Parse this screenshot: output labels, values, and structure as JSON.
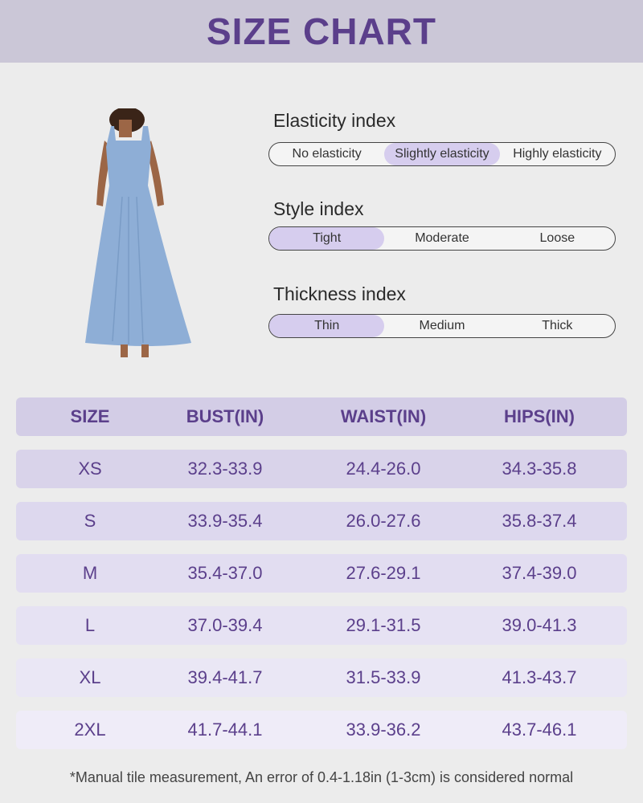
{
  "header": {
    "title": "SIZE CHART"
  },
  "indices": [
    {
      "label": "Elasticity index",
      "options": [
        "No elasticity",
        "Slightly elasticity",
        "Highly elasticity"
      ],
      "selected": 1
    },
    {
      "label": "Style index",
      "options": [
        "Tight",
        "Moderate",
        "Loose"
      ],
      "selected": 0
    },
    {
      "label": "Thickness index",
      "options": [
        "Thin",
        "Medium",
        "Thick"
      ],
      "selected": 0
    }
  ],
  "table": {
    "columns": [
      "SIZE",
      "BUST(IN)",
      "WAIST(IN)",
      "HIPS(IN)"
    ],
    "rows": [
      [
        "XS",
        "32.3-33.9",
        "24.4-26.0",
        "34.3-35.8"
      ],
      [
        "S",
        "33.9-35.4",
        "26.0-27.6",
        "35.8-37.4"
      ],
      [
        "M",
        "35.4-37.0",
        "27.6-29.1",
        "37.4-39.0"
      ],
      [
        "L",
        "37.0-39.4",
        "29.1-31.5",
        "39.0-41.3"
      ],
      [
        "XL",
        "39.4-41.7",
        "31.5-33.9",
        "41.3-43.7"
      ],
      [
        "2XL",
        "41.7-44.1",
        "33.9-36.2",
        "43.7-46.1"
      ]
    ]
  },
  "footnote": "*Manual tile measurement, An error of 0.4-1.18in (1-3cm) is considered normal"
}
